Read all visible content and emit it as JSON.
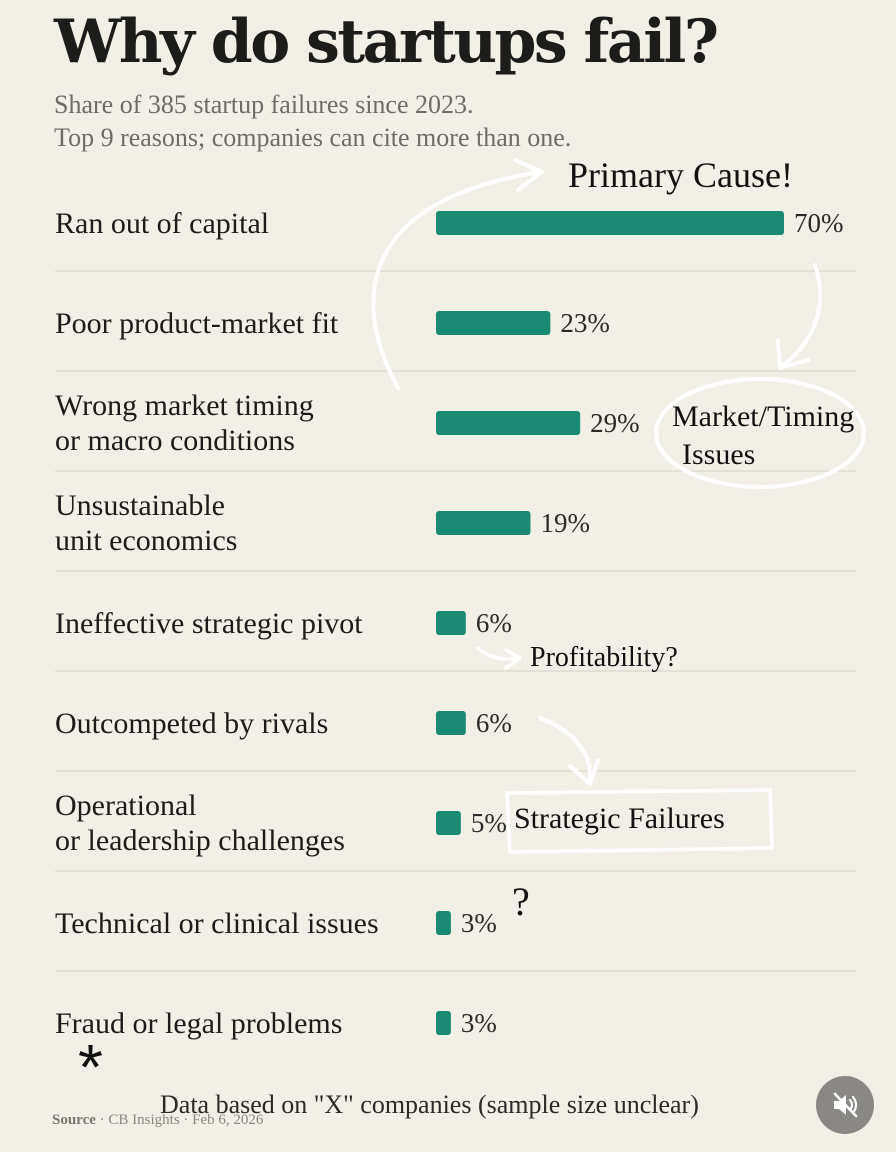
{
  "title": "Why do startups fail?",
  "subtitle": {
    "line1": "Share of 385 startup failures since 2023.",
    "line2": "Top 9 reasons; companies can cite more than one."
  },
  "colors": {
    "bar": "#1a8a72",
    "background": "#f2efe6",
    "divider": "#dcd8cc"
  },
  "chart_data": {
    "type": "bar",
    "orientation": "horizontal",
    "categories": [
      [
        "Ran out of capital"
      ],
      [
        "Poor product-market fit"
      ],
      [
        "Wrong market timing",
        "or macro conditions"
      ],
      [
        "Unsustainable",
        "unit economics"
      ],
      [
        "Ineffective strategic pivot"
      ],
      [
        "Outcompeted by rivals"
      ],
      [
        "Operational",
        "or leadership challenges"
      ],
      [
        "Technical or clinical issues"
      ],
      [
        "Fraud or legal problems"
      ]
    ],
    "values": [
      70,
      23,
      29,
      19,
      6,
      6,
      5,
      3,
      3
    ],
    "value_labels": [
      "70%",
      "23%",
      "29%",
      "19%",
      "6%",
      "6%",
      "5%",
      "3%",
      "3%"
    ],
    "xlim": [
      0,
      70
    ],
    "grid": false
  },
  "annotations": {
    "primary_cause": "Primary Cause!",
    "market_timing_line1": "Market/Timing",
    "market_timing_line2": "Issues",
    "profitability": "Profitability?",
    "strategic_failures": "Strategic Failures",
    "question_mark": "?",
    "asterisk": "*",
    "sample_note": "Data based on \"X\" companies (sample size unclear)"
  },
  "source": {
    "label": "Source",
    "text": " · CB Insights · Feb 6, 2026"
  },
  "mute_button": {
    "icon": "speaker-muted-icon"
  }
}
